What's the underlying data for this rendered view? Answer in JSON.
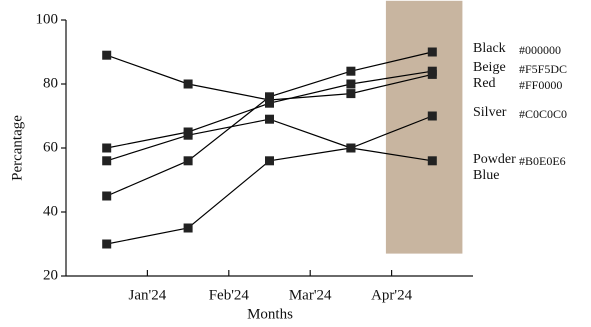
{
  "chart_data": {
    "type": "line",
    "x_label": "Months",
    "y_label": "Percantage",
    "x": [
      0,
      1,
      2,
      3,
      4
    ],
    "xlim": [
      -0.5,
      4.5
    ],
    "xticks": [
      {
        "value": 0.5,
        "label": "Jan'24"
      },
      {
        "value": 1.5,
        "label": "Feb'24"
      },
      {
        "value": 2.5,
        "label": "Mar'24"
      },
      {
        "value": 3.5,
        "label": "Apr'24"
      }
    ],
    "ylim": [
      20,
      100
    ],
    "yticks": [
      20,
      40,
      60,
      80,
      100
    ],
    "highlight": {
      "x": [
        3.43,
        4.37
      ],
      "y": [
        27,
        106
      ],
      "color": "#c8b5a0"
    },
    "series": [
      {
        "name": "Black",
        "code": "#000000",
        "color": "#000000",
        "values": [
          45,
          56,
          76,
          84,
          90
        ]
      },
      {
        "name": "Beige",
        "code": "#F5F5DC",
        "color": "#000000",
        "values": [
          60,
          65,
          74,
          80,
          84
        ]
      },
      {
        "name": "Red",
        "code": "#FF0000",
        "color": "#000000",
        "values": [
          89,
          80,
          75,
          77,
          83
        ]
      },
      {
        "name": "Silver",
        "code": "#C0C0C0",
        "color": "#000000",
        "values": [
          30,
          35,
          56,
          60,
          70
        ]
      },
      {
        "name": "Powder Blue",
        "code": "#B0E0E6",
        "color": "#000000",
        "values": [
          56,
          64,
          69,
          60,
          56
        ]
      }
    ]
  }
}
